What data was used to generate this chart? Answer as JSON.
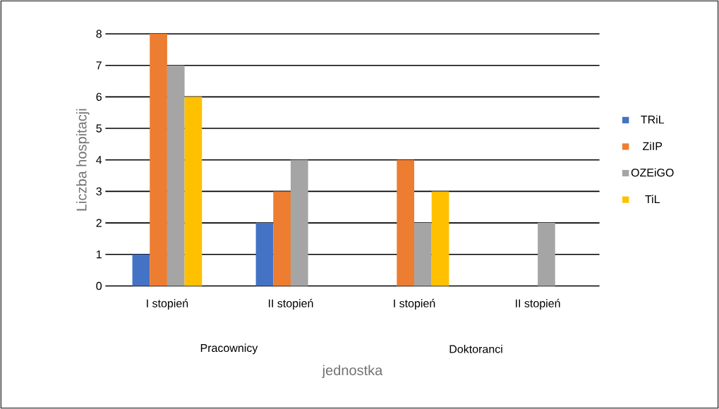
{
  "chart_data": {
    "type": "bar",
    "categories": [
      "I stopień",
      "II stopień",
      "I stopień",
      "II stopień"
    ],
    "series": [
      {
        "name": "TRiL",
        "color": "#4472c4",
        "values": [
          1,
          2,
          null,
          null
        ]
      },
      {
        "name": "ZiIP",
        "color": "#ed7d31",
        "values": [
          8,
          3,
          4,
          null
        ]
      },
      {
        "name": "OZEiGO",
        "color": "#a5a5a5",
        "values": [
          7,
          4,
          2,
          2
        ]
      },
      {
        "name": "TiL",
        "color": "#ffc000",
        "values": [
          6,
          null,
          3,
          null
        ]
      }
    ],
    "annotations": [
      "Pracownicy",
      "Doktoranci"
    ],
    "xlabel": "jednostka",
    "ylabel": "Liczba hospitacji",
    "ylim": [
      0,
      8
    ],
    "yticks": [
      0,
      1,
      2,
      3,
      4,
      5,
      6,
      7,
      8
    ],
    "grid": "y",
    "legend": "right"
  }
}
